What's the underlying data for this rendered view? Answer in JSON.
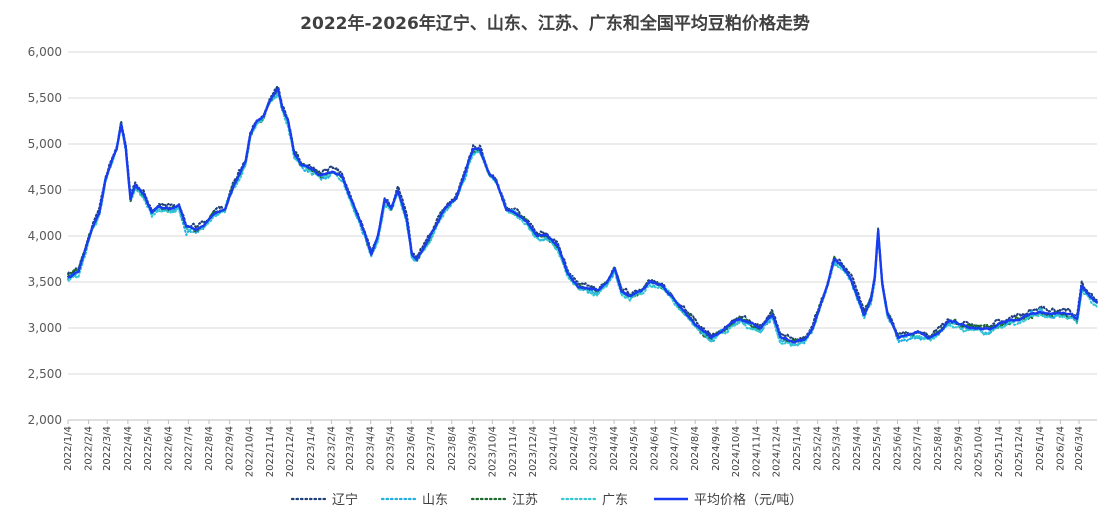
{
  "chart_data": {
    "type": "line",
    "title": "2022年-2026年辽宁、山东、江苏、广东和全国平均豆粕价格走势",
    "xlabel": "",
    "ylabel": "",
    "ylim": [
      2000,
      6000
    ],
    "yticks": [
      "2,000",
      "2,500",
      "3,000",
      "3,500",
      "4,000",
      "4,500",
      "5,000",
      "5,500",
      "6,000"
    ],
    "ytick_values": [
      2000,
      2500,
      3000,
      3500,
      4000,
      4500,
      5000,
      5500,
      6000
    ],
    "grid": true,
    "legend_position": "bottom",
    "x_tick_labels": [
      "2022/1/4",
      "2022/2/4",
      "2022/3/4",
      "2022/4/4",
      "2022/5/4",
      "2022/6/4",
      "2022/7/4",
      "2022/8/4",
      "2022/9/4",
      "2022/10/4",
      "2022/11/4",
      "2022/12/4",
      "2023/1/4",
      "2023/2/4",
      "2023/3/4",
      "2023/4/4",
      "2023/5/4",
      "2023/6/4",
      "2023/7/4",
      "2023/8/4",
      "2023/9/4",
      "2023/10/4",
      "2023/11/4",
      "2023/12/4",
      "2024/1/4",
      "2024/2/4",
      "2024/3/4",
      "2024/4/4",
      "2024/5/4",
      "2024/6/4",
      "2024/7/4",
      "2024/8/4",
      "2024/9/4",
      "2024/10/4",
      "2024/11/4",
      "2024/12/4",
      "2025/1/4",
      "2025/2/4",
      "2025/3/4",
      "2025/4/4",
      "2025/5/4",
      "2025/6/4",
      "2025/7/4",
      "2025/8/4",
      "2025/9/4",
      "2025/10/4",
      "2025/11/4",
      "2025/12/4",
      "2026/1/4",
      "2026/2/4",
      "2026/3/4"
    ],
    "x_end": "2026/3/31",
    "average_key_points": [
      [
        "2022/1/4",
        3560
      ],
      [
        "2022/1/20",
        3620
      ],
      [
        "2022/2/10",
        4100
      ],
      [
        "2022/2/20",
        4250
      ],
      [
        "2022/3/1",
        4600
      ],
      [
        "2022/3/10",
        4800
      ],
      [
        "2022/3/18",
        4950
      ],
      [
        "2022/3/25",
        5220
      ],
      [
        "2022/4/1",
        4950
      ],
      [
        "2022/4/8",
        4400
      ],
      [
        "2022/4/15",
        4550
      ],
      [
        "2022/4/28",
        4450
      ],
      [
        "2022/5/10",
        4250
      ],
      [
        "2022/5/20",
        4320
      ],
      [
        "2022/6/10",
        4300
      ],
      [
        "2022/6/20",
        4330
      ],
      [
        "2022/7/1",
        4100
      ],
      [
        "2022/7/15",
        4080
      ],
      [
        "2022/7/28",
        4120
      ],
      [
        "2022/8/10",
        4250
      ],
      [
        "2022/8/28",
        4300
      ],
      [
        "2022/9/10",
        4550
      ],
      [
        "2022/9/28",
        4800
      ],
      [
        "2022/10/5",
        5100
      ],
      [
        "2022/10/15",
        5250
      ],
      [
        "2022/10/25",
        5300
      ],
      [
        "2022/11/2",
        5450
      ],
      [
        "2022/11/10",
        5550
      ],
      [
        "2022/11/16",
        5600
      ],
      [
        "2022/11/22",
        5400
      ],
      [
        "2022/12/1",
        5250
      ],
      [
        "2022/12/10",
        4900
      ],
      [
        "2022/12/20",
        4780
      ],
      [
        "2023/1/5",
        4720
      ],
      [
        "2023/1/20",
        4650
      ],
      [
        "2023/2/5",
        4700
      ],
      [
        "2023/2/20",
        4650
      ],
      [
        "2023/3/5",
        4400
      ],
      [
        "2023/3/20",
        4150
      ],
      [
        "2023/4/5",
        3800
      ],
      [
        "2023/4/15",
        4000
      ],
      [
        "2023/4/25",
        4400
      ],
      [
        "2023/5/5",
        4300
      ],
      [
        "2023/5/15",
        4500
      ],
      [
        "2023/5/28",
        4200
      ],
      [
        "2023/6/5",
        3800
      ],
      [
        "2023/6/12",
        3750
      ],
      [
        "2023/6/25",
        3900
      ],
      [
        "2023/7/10",
        4100
      ],
      [
        "2023/7/25",
        4300
      ],
      [
        "2023/8/10",
        4400
      ],
      [
        "2023/8/25",
        4700
      ],
      [
        "2023/9/5",
        4950
      ],
      [
        "2023/9/15",
        4950
      ],
      [
        "2023/9/28",
        4700
      ],
      [
        "2023/10/10",
        4600
      ],
      [
        "2023/10/25",
        4300
      ],
      [
        "2023/11/10",
        4250
      ],
      [
        "2023/11/25",
        4150
      ],
      [
        "2023/12/10",
        4000
      ],
      [
        "2023/12/25",
        4000
      ],
      [
        "2024/1/10",
        3900
      ],
      [
        "2024/1/25",
        3600
      ],
      [
        "2024/2/10",
        3450
      ],
      [
        "2024/2/28",
        3420
      ],
      [
        "2024/3/10",
        3400
      ],
      [
        "2024/3/25",
        3500
      ],
      [
        "2024/4/5",
        3650
      ],
      [
        "2024/4/15",
        3400
      ],
      [
        "2024/4/28",
        3350
      ],
      [
        "2024/5/15",
        3400
      ],
      [
        "2024/5/28",
        3500
      ],
      [
        "2024/6/15",
        3450
      ],
      [
        "2024/6/28",
        3350
      ],
      [
        "2024/7/10",
        3250
      ],
      [
        "2024/7/28",
        3100
      ],
      [
        "2024/8/10",
        3000
      ],
      [
        "2024/8/28",
        2900
      ],
      [
        "2024/9/10",
        2950
      ],
      [
        "2024/9/28",
        3050
      ],
      [
        "2024/10/10",
        3100
      ],
      [
        "2024/10/25",
        3050
      ],
      [
        "2024/11/10",
        3000
      ],
      [
        "2024/11/28",
        3150
      ],
      [
        "2024/12/10",
        2900
      ],
      [
        "2024/12/28",
        2850
      ],
      [
        "2025/1/15",
        2870
      ],
      [
        "2025/1/28",
        3000
      ],
      [
        "2025/2/10",
        3300
      ],
      [
        "2025/2/20",
        3500
      ],
      [
        "2025/3/1",
        3750
      ],
      [
        "2025/3/10",
        3700
      ],
      [
        "2025/3/25",
        3550
      ],
      [
        "2025/4/5",
        3350
      ],
      [
        "2025/4/15",
        3150
      ],
      [
        "2025/4/25",
        3300
      ],
      [
        "2025/5/1",
        3550
      ],
      [
        "2025/5/6",
        4050
      ],
      [
        "2025/5/12",
        3500
      ],
      [
        "2025/5/20",
        3150
      ],
      [
        "2025/6/5",
        2900
      ],
      [
        "2025/6/20",
        2920
      ],
      [
        "2025/7/5",
        2950
      ],
      [
        "2025/7/20",
        2900
      ],
      [
        "2025/8/5",
        2950
      ],
      [
        "2025/8/20",
        3080
      ],
      [
        "2025/9/5",
        3050
      ],
      [
        "2025/9/20",
        3000
      ],
      [
        "2025/10/5",
        3000
      ],
      [
        "2025/10/20",
        2980
      ],
      [
        "2025/11/5",
        3050
      ],
      [
        "2025/11/20",
        3080
      ],
      [
        "2025/12/5",
        3100
      ],
      [
        "2025/12/20",
        3150
      ],
      [
        "2026/1/5",
        3180
      ],
      [
        "2026/1/20",
        3150
      ],
      [
        "2026/2/5",
        3170
      ],
      [
        "2026/2/20",
        3150
      ],
      [
        "2026/3/1",
        3100
      ],
      [
        "2026/3/8",
        3450
      ],
      [
        "2026/3/20",
        3350
      ],
      [
        "2026/3/31",
        3280
      ]
    ],
    "series": [
      {
        "name": "辽宁",
        "color": "#1f3f7a",
        "style": "dotted",
        "offset": 40,
        "noise": 30,
        "seed": 11
      },
      {
        "name": "山东",
        "color": "#21aee0",
        "style": "dotted",
        "offset": -30,
        "noise": 35,
        "seed": 23
      },
      {
        "name": "江苏",
        "color": "#1b6b2e",
        "style": "dotted",
        "offset": -10,
        "noise": 30,
        "seed": 37
      },
      {
        "name": "广东",
        "color": "#33c7d3",
        "style": "dotted",
        "offset": -50,
        "noise": 30,
        "seed": 53
      },
      {
        "name": "平均价格（元/吨）",
        "color": "#1a3cf0",
        "style": "solid",
        "offset": 0,
        "noise": 12,
        "seed": 71
      }
    ]
  }
}
